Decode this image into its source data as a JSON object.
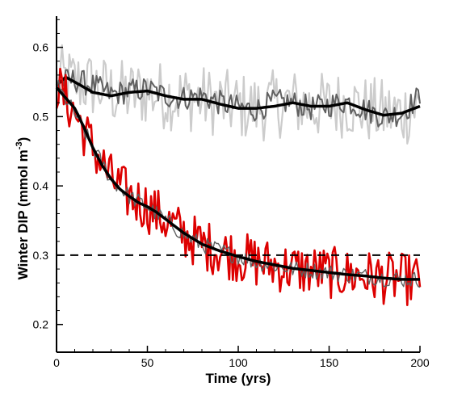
{
  "chart_data": {
    "type": "line",
    "xlabel": "Time (yrs)",
    "ylabel": {
      "main": "Winter DIP (mmol m",
      "exp": "-3",
      "close": ")"
    },
    "xlim": [
      0,
      200
    ],
    "ylim": [
      0.16,
      0.645
    ],
    "x_ticks": [
      0,
      50,
      100,
      150,
      200
    ],
    "y_ticks": [
      0.2,
      0.3,
      0.4,
      0.5,
      0.6
    ],
    "x_tick_labels": [
      "0",
      "50",
      "100",
      "150",
      "200"
    ],
    "y_tick_labels": [
      "0.2",
      "0.3",
      "0.4",
      "0.5",
      "0.6"
    ],
    "grid": false,
    "colors": {
      "red": "#dd0000",
      "light_gray": "#cccccc",
      "dark_gray": "#606060",
      "black": "#000000"
    },
    "reference_line": {
      "y": 0.3,
      "style": "dashed",
      "x_range": [
        0,
        200
      ]
    },
    "series": [
      {
        "role": "control-annual",
        "color": "#cccccc",
        "x": [
          0,
          10,
          20,
          30,
          40,
          50,
          60,
          70,
          80,
          90,
          100,
          110,
          120,
          130,
          140,
          150,
          160,
          170,
          180,
          190,
          200
        ],
        "values": [
          0.555,
          0.55,
          0.545,
          0.535,
          0.532,
          0.535,
          0.53,
          0.528,
          0.525,
          0.52,
          0.515,
          0.512,
          0.518,
          0.52,
          0.515,
          0.515,
          0.52,
          0.51,
          0.505,
          0.505,
          0.515
        ],
        "noise": 0.05
      },
      {
        "role": "control-smoothed",
        "color": "#606060",
        "x": [
          0,
          10,
          20,
          30,
          40,
          50,
          60,
          70,
          80,
          90,
          100,
          110,
          120,
          130,
          140,
          150,
          160,
          170,
          180,
          190,
          200
        ],
        "values": [
          0.55,
          0.553,
          0.545,
          0.532,
          0.537,
          0.54,
          0.53,
          0.527,
          0.53,
          0.52,
          0.513,
          0.51,
          0.522,
          0.52,
          0.512,
          0.517,
          0.522,
          0.51,
          0.5,
          0.505,
          0.53
        ],
        "noise": 0.018
      },
      {
        "role": "control-trend",
        "color": "#000000",
        "x": [
          0,
          5,
          10,
          20,
          30,
          40,
          50,
          60,
          70,
          80,
          90,
          100,
          110,
          120,
          130,
          140,
          150,
          160,
          170,
          180,
          190,
          200
        ],
        "values": [
          0.545,
          0.557,
          0.55,
          0.535,
          0.53,
          0.535,
          0.537,
          0.53,
          0.525,
          0.525,
          0.518,
          0.512,
          0.512,
          0.515,
          0.52,
          0.515,
          0.515,
          0.52,
          0.51,
          0.502,
          0.505,
          0.515
        ]
      },
      {
        "role": "experiment-annual",
        "color": "#dd0000",
        "x": [
          0,
          5,
          10,
          20,
          30,
          40,
          50,
          60,
          70,
          80,
          90,
          100,
          110,
          120,
          130,
          140,
          150,
          160,
          170,
          180,
          190,
          200
        ],
        "values": [
          0.545,
          0.525,
          0.505,
          0.455,
          0.41,
          0.385,
          0.37,
          0.35,
          0.33,
          0.315,
          0.307,
          0.298,
          0.29,
          0.285,
          0.28,
          0.278,
          0.275,
          0.272,
          0.27,
          0.267,
          0.265,
          0.265
        ],
        "noise": 0.038
      },
      {
        "role": "experiment-smoothed",
        "color": "#606060",
        "x": [
          0,
          5,
          10,
          20,
          30,
          40,
          50,
          60,
          70,
          80,
          90,
          100,
          110,
          120,
          130,
          140,
          150,
          160,
          170,
          180,
          190,
          200
        ],
        "values": [
          0.545,
          0.525,
          0.505,
          0.455,
          0.41,
          0.385,
          0.37,
          0.35,
          0.33,
          0.315,
          0.307,
          0.298,
          0.29,
          0.285,
          0.28,
          0.278,
          0.275,
          0.272,
          0.27,
          0.267,
          0.265,
          0.265
        ],
        "noise": 0.012
      },
      {
        "role": "experiment-trend",
        "color": "#000000",
        "x": [
          0,
          5,
          10,
          15,
          20,
          25,
          30,
          35,
          40,
          45,
          50,
          55,
          60,
          70,
          80,
          90,
          100,
          110,
          120,
          130,
          140,
          150,
          160,
          170,
          180,
          190,
          200
        ],
        "values": [
          0.542,
          0.527,
          0.512,
          0.485,
          0.455,
          0.43,
          0.41,
          0.395,
          0.385,
          0.376,
          0.37,
          0.362,
          0.352,
          0.332,
          0.316,
          0.306,
          0.298,
          0.291,
          0.286,
          0.281,
          0.278,
          0.275,
          0.272,
          0.27,
          0.267,
          0.265,
          0.265
        ]
      }
    ]
  }
}
